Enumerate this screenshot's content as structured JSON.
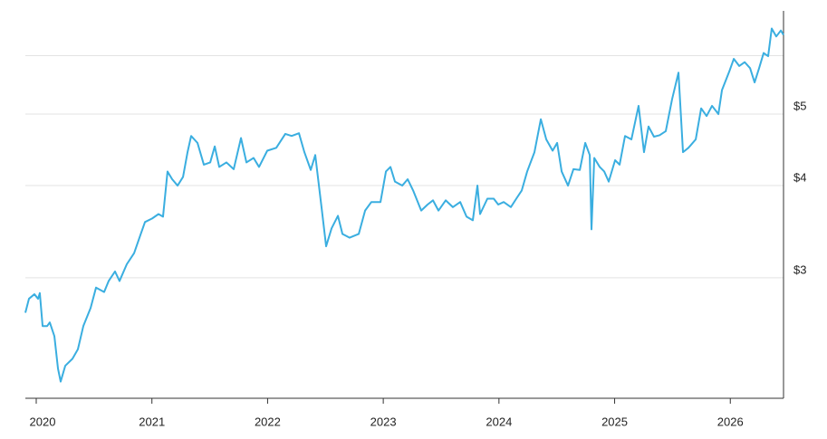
{
  "chart_data": {
    "type": "line",
    "log_scale": true,
    "grid": true,
    "y_axis_side": "right",
    "x": [
      2019.906,
      2019.937,
      2019.984,
      2020.016,
      2020.031,
      2020.055,
      2020.094,
      2020.117,
      2020.157,
      2020.188,
      2020.211,
      2020.251,
      2020.313,
      2020.36,
      2020.407,
      2020.47,
      2020.517,
      2020.587,
      2020.626,
      2020.681,
      2020.72,
      2020.783,
      2020.846,
      2020.901,
      2020.94,
      2021.002,
      2021.057,
      2021.096,
      2021.135,
      2021.175,
      2021.222,
      2021.269,
      2021.308,
      2021.339,
      2021.394,
      2021.449,
      2021.504,
      2021.543,
      2021.582,
      2021.644,
      2021.707,
      2021.77,
      2021.817,
      2021.879,
      2021.926,
      2021.997,
      2022.075,
      2022.153,
      2022.208,
      2022.271,
      2022.318,
      2022.373,
      2022.412,
      2022.467,
      2022.506,
      2022.553,
      2022.608,
      2022.647,
      2022.709,
      2022.788,
      2022.843,
      2022.897,
      2022.976,
      2023.023,
      2023.062,
      2023.101,
      2023.164,
      2023.211,
      2023.258,
      2023.328,
      2023.383,
      2023.43,
      2023.477,
      2023.54,
      2023.602,
      2023.665,
      2023.72,
      2023.774,
      2023.814,
      2023.837,
      2023.9,
      2023.955,
      2023.994,
      2024.041,
      2024.103,
      2024.15,
      2024.197,
      2024.244,
      2024.307,
      2024.362,
      2024.409,
      2024.464,
      2024.503,
      2024.542,
      2024.597,
      2024.644,
      2024.699,
      2024.746,
      2024.785,
      2024.8,
      2024.824,
      2024.871,
      2024.91,
      2024.949,
      2025.004,
      2025.043,
      2025.09,
      2025.145,
      2025.207,
      2025.254,
      2025.293,
      2025.34,
      2025.388,
      2025.442,
      2025.497,
      2025.552,
      2025.591,
      2025.638,
      2025.701,
      2025.748,
      2025.795,
      2025.842,
      2025.897,
      2025.928,
      2025.991,
      2026.03,
      2026.077,
      2026.124,
      2026.171,
      2026.21,
      2026.249,
      2026.288,
      2026.327,
      2026.358,
      2026.397,
      2026.437,
      2026.46
    ],
    "series": [
      {
        "color": "#3aaee0",
        "values": [
          2.69,
          2.81,
          2.85,
          2.81,
          2.86,
          2.58,
          2.58,
          2.61,
          2.5,
          2.26,
          2.17,
          2.28,
          2.33,
          2.4,
          2.58,
          2.73,
          2.91,
          2.87,
          2.97,
          3.06,
          2.97,
          3.13,
          3.24,
          3.43,
          3.57,
          3.61,
          3.66,
          3.63,
          4.18,
          4.08,
          4.0,
          4.11,
          4.44,
          4.67,
          4.57,
          4.27,
          4.3,
          4.52,
          4.24,
          4.3,
          4.21,
          4.64,
          4.3,
          4.36,
          4.24,
          4.46,
          4.5,
          4.7,
          4.67,
          4.71,
          4.44,
          4.2,
          4.4,
          3.73,
          3.31,
          3.5,
          3.64,
          3.44,
          3.4,
          3.44,
          3.7,
          3.8,
          3.8,
          4.18,
          4.24,
          4.05,
          4.0,
          4.08,
          3.94,
          3.7,
          3.77,
          3.82,
          3.7,
          3.82,
          3.74,
          3.8,
          3.63,
          3.59,
          4.0,
          3.66,
          3.84,
          3.84,
          3.77,
          3.8,
          3.74,
          3.84,
          3.94,
          4.18,
          4.44,
          4.92,
          4.62,
          4.46,
          4.57,
          4.18,
          4.0,
          4.21,
          4.2,
          4.57,
          4.4,
          3.49,
          4.36,
          4.24,
          4.18,
          4.05,
          4.33,
          4.27,
          4.67,
          4.62,
          5.13,
          4.44,
          4.81,
          4.66,
          4.68,
          4.74,
          5.24,
          5.69,
          4.44,
          4.5,
          4.62,
          5.09,
          4.97,
          5.13,
          5.0,
          5.39,
          5.71,
          5.94,
          5.81,
          5.88,
          5.77,
          5.52,
          5.77,
          6.05,
          5.99,
          6.53,
          6.37,
          6.49,
          6.4
        ]
      }
    ],
    "xlim": [
      2019.906,
      2026.46
    ],
    "xticks": [
      2020,
      2021,
      2022,
      2023,
      2024,
      2025,
      2026
    ],
    "ylim": [
      2.06,
      6.9
    ],
    "yticks": [
      {
        "value": 3,
        "label": "$3"
      },
      {
        "value": 4,
        "label": "$4"
      },
      {
        "value": 5,
        "label": "$5"
      },
      {
        "value": 6,
        "label": null
      }
    ]
  }
}
